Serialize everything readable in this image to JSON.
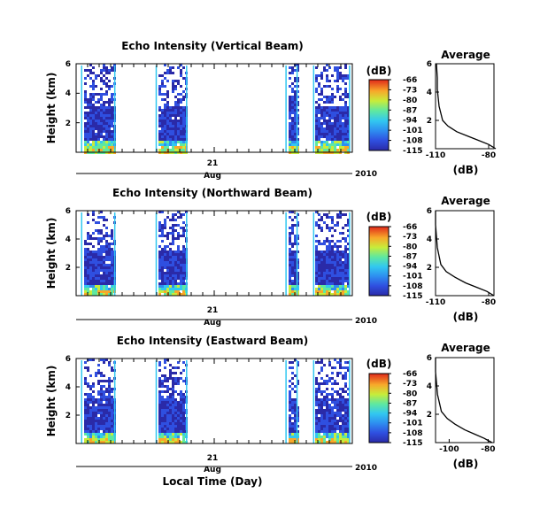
{
  "shared": {
    "xlabel": "Local Time (Day)",
    "x_day": "21",
    "x_month": "Aug",
    "x_year": "2010",
    "ylabel": "Height (km)",
    "cbar_label": "(dB)",
    "avg_title": "Average",
    "avg_xlabel": "(dB)"
  },
  "chart_data": [
    {
      "type": "heatmap",
      "title": "Echo Intensity (Vertical Beam)",
      "ylim": [
        0,
        6
      ],
      "yticks": [
        "6",
        "4",
        "2"
      ],
      "colorbar_ticks": [
        "-66",
        "-73",
        "-80",
        "-87",
        "-94",
        "-101",
        "-108",
        "-115"
      ],
      "clim": [
        -115,
        -66
      ],
      "avg": {
        "xlim": [
          -110,
          -77
        ],
        "xticks": [
          "-110",
          "-80"
        ],
        "ylim": [
          0,
          6
        ],
        "yticks": [
          "6",
          "4",
          "2"
        ],
        "profile": [
          [
            -76,
            0.0
          ],
          [
            -80,
            0.3
          ],
          [
            -86,
            0.6
          ],
          [
            -92,
            0.9
          ],
          [
            -98,
            1.2
          ],
          [
            -103,
            1.6
          ],
          [
            -106,
            2.0
          ],
          [
            -107,
            2.5
          ],
          [
            -108,
            3.0
          ],
          [
            -108.5,
            3.6
          ],
          [
            -109,
            4.2
          ],
          [
            -109,
            5.0
          ],
          [
            -109.5,
            6.0
          ]
        ]
      }
    },
    {
      "type": "heatmap",
      "title": "Echo Intensity (Northward Beam)",
      "ylim": [
        0,
        6
      ],
      "yticks": [
        "6",
        "4",
        "2"
      ],
      "colorbar_ticks": [
        "-66",
        "-73",
        "-80",
        "-87",
        "-94",
        "-101",
        "-108",
        "-115"
      ],
      "clim": [
        -115,
        -66
      ],
      "avg": {
        "xlim": [
          -110,
          -77
        ],
        "xticks": [
          "-110",
          "-80"
        ],
        "ylim": [
          0,
          6
        ],
        "yticks": [
          "6",
          "4",
          "2"
        ],
        "profile": [
          [
            -77,
            0.0
          ],
          [
            -81,
            0.3
          ],
          [
            -87,
            0.6
          ],
          [
            -93,
            0.9
          ],
          [
            -99,
            1.3
          ],
          [
            -104,
            1.7
          ],
          [
            -107,
            2.2
          ],
          [
            -108,
            2.8
          ],
          [
            -109,
            3.4
          ],
          [
            -109.5,
            4.2
          ],
          [
            -110,
            5.0
          ],
          [
            -110,
            6.0
          ]
        ]
      }
    },
    {
      "type": "heatmap",
      "title": "Echo Intensity (Eastward Beam)",
      "ylim": [
        0,
        6
      ],
      "yticks": [
        "6",
        "4",
        "2"
      ],
      "colorbar_ticks": [
        "-66",
        "-73",
        "-80",
        "-87",
        "-94",
        "-101",
        "-108",
        "-115"
      ],
      "clim": [
        -115,
        -66
      ],
      "avg": {
        "xlim": [
          -107,
          -77
        ],
        "xticks": [
          "-100",
          "-80"
        ],
        "ylim": [
          0,
          6
        ],
        "yticks": [
          "6",
          "4",
          "2"
        ],
        "profile": [
          [
            -78,
            0.0
          ],
          [
            -82,
            0.3
          ],
          [
            -87,
            0.6
          ],
          [
            -92,
            0.9
          ],
          [
            -97,
            1.3
          ],
          [
            -101,
            1.7
          ],
          [
            -104,
            2.2
          ],
          [
            -105,
            2.8
          ],
          [
            -106,
            3.4
          ],
          [
            -106.5,
            4.2
          ],
          [
            -107,
            5.0
          ],
          [
            -107,
            6.0
          ]
        ]
      }
    }
  ]
}
